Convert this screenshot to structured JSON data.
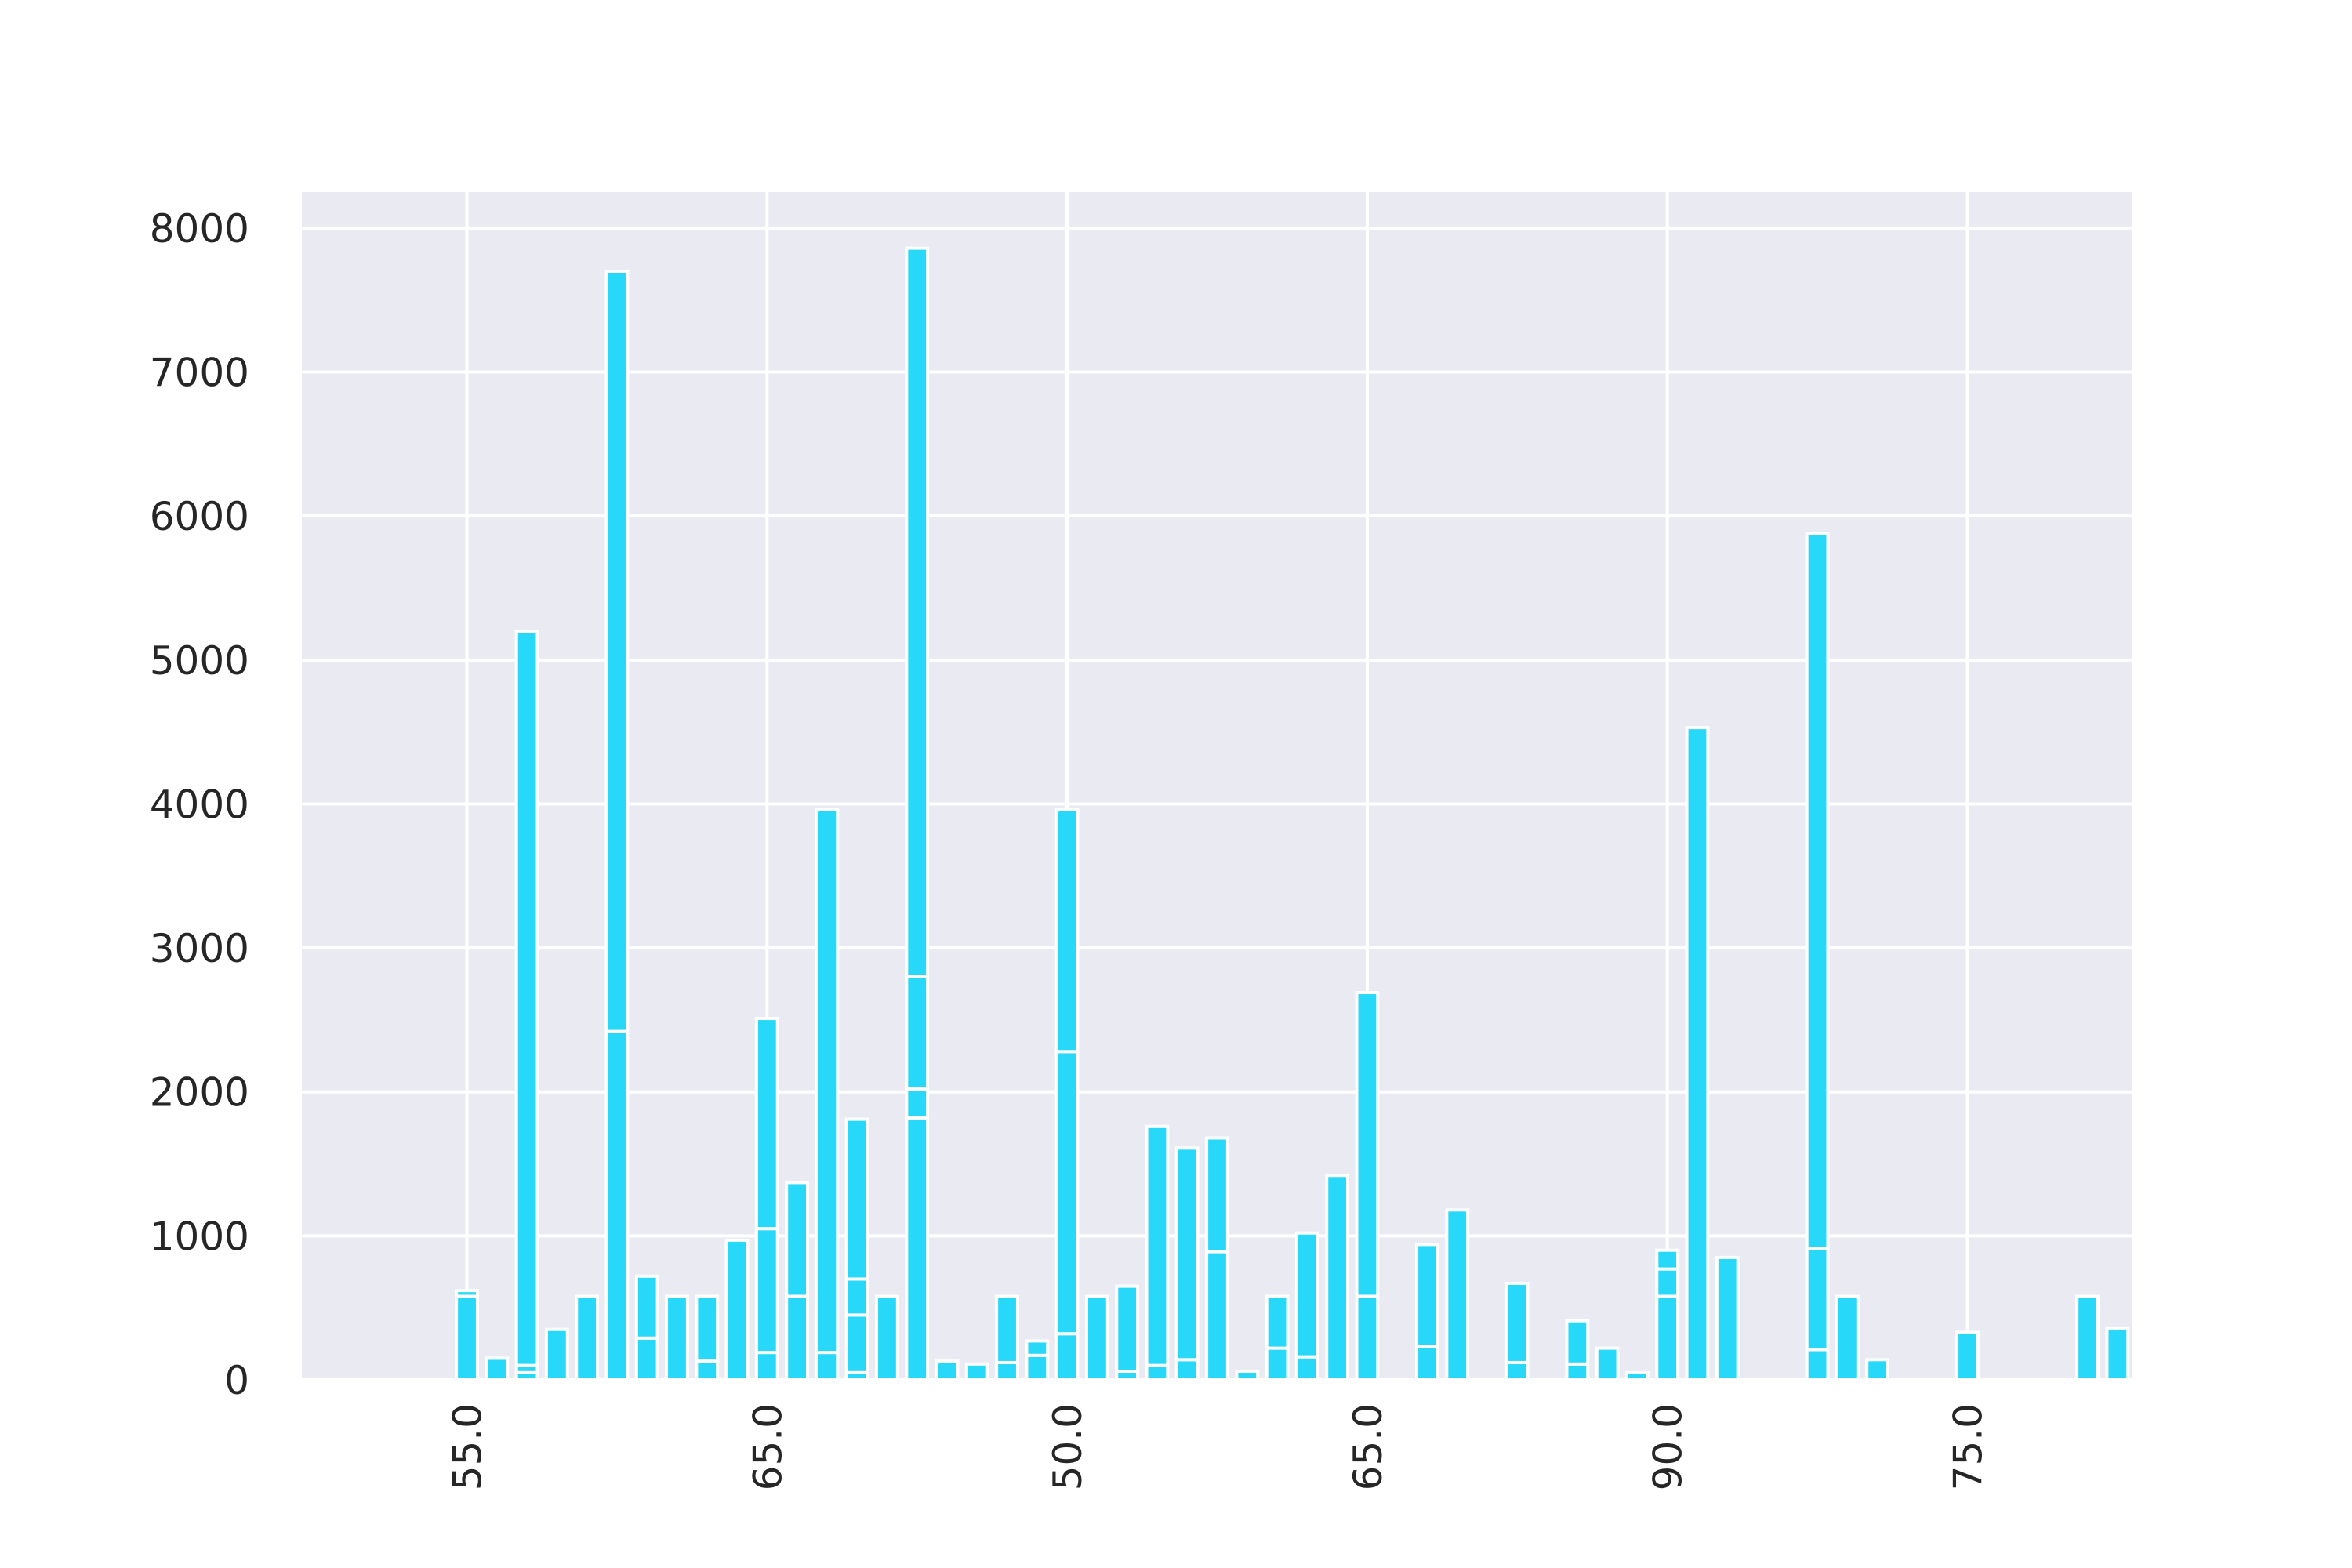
{
  "chart_data": {
    "type": "bar",
    "stacked": true,
    "grid": true,
    "colors": {
      "bar": "#28d8f8",
      "bar_edge": "#ffffff",
      "background": "#eaeaf2",
      "grid": "#ffffff",
      "text": "#262626"
    },
    "xlim": [
      -10.5,
      50.5
    ],
    "ylim": [
      0,
      8250
    ],
    "x_ticks": [
      {
        "x": -5,
        "label": "55.0"
      },
      {
        "x": 5,
        "label": "65.0"
      },
      {
        "x": 15,
        "label": "50.0"
      },
      {
        "x": 25,
        "label": "65.0"
      },
      {
        "x": 35,
        "label": "90.0"
      },
      {
        "x": 45,
        "label": "75.0"
      }
    ],
    "y_ticks": [
      0,
      1000,
      2000,
      3000,
      4000,
      5000,
      6000,
      7000,
      8000
    ],
    "bar_width": 0.7,
    "bars": [
      {
        "x": -5,
        "stack": [
          580,
          40
        ]
      },
      {
        "x": -4,
        "stack": [
          150
        ]
      },
      {
        "x": -3,
        "stack": [
          50,
          50,
          5100
        ]
      },
      {
        "x": -2,
        "stack": [
          350
        ]
      },
      {
        "x": -1,
        "stack": [
          580
        ]
      },
      {
        "x": 0,
        "stack": [
          2420,
          5280
        ]
      },
      {
        "x": 1,
        "stack": [
          290,
          430
        ]
      },
      {
        "x": 2,
        "stack": [
          580
        ]
      },
      {
        "x": 3,
        "stack": [
          130,
          450
        ]
      },
      {
        "x": 4,
        "stack": [
          970
        ]
      },
      {
        "x": 5,
        "stack": [
          190,
          860,
          1460
        ]
      },
      {
        "x": 6,
        "stack": [
          580,
          790
        ]
      },
      {
        "x": 7,
        "stack": [
          190,
          3770
        ]
      },
      {
        "x": 8,
        "stack": [
          50,
          400,
          250,
          1110
        ]
      },
      {
        "x": 9,
        "stack": [
          580
        ]
      },
      {
        "x": 10,
        "stack": [
          1820,
          200,
          780,
          5060
        ]
      },
      {
        "x": 11,
        "stack": [
          130
        ]
      },
      {
        "x": 12,
        "stack": [
          110
        ]
      },
      {
        "x": 13,
        "stack": [
          120,
          460
        ]
      },
      {
        "x": 14,
        "stack": [
          170,
          100
        ]
      },
      {
        "x": 15,
        "stack": [
          320,
          1960,
          1680
        ]
      },
      {
        "x": 16,
        "stack": [
          580
        ]
      },
      {
        "x": 17,
        "stack": [
          60,
          590
        ]
      },
      {
        "x": 18,
        "stack": [
          100,
          1660
        ]
      },
      {
        "x": 19,
        "stack": [
          140,
          1470
        ]
      },
      {
        "x": 20,
        "stack": [
          890,
          790
        ]
      },
      {
        "x": 21,
        "stack": [
          60
        ]
      },
      {
        "x": 22,
        "stack": [
          220,
          360
        ]
      },
      {
        "x": 23,
        "stack": [
          160,
          860
        ]
      },
      {
        "x": 24,
        "stack": [
          1420
        ]
      },
      {
        "x": 25,
        "stack": [
          580,
          2110
        ]
      },
      {
        "x": 26,
        "stack": [
          0
        ]
      },
      {
        "x": 27,
        "stack": [
          230,
          710
        ]
      },
      {
        "x": 28,
        "stack": [
          1180
        ]
      },
      {
        "x": 29,
        "stack": [
          0
        ]
      },
      {
        "x": 30,
        "stack": [
          120,
          550
        ]
      },
      {
        "x": 31,
        "stack": [
          0
        ]
      },
      {
        "x": 32,
        "stack": [
          110,
          300
        ]
      },
      {
        "x": 33,
        "stack": [
          220
        ]
      },
      {
        "x": 34,
        "stack": [
          50
        ]
      },
      {
        "x": 35,
        "stack": [
          580,
          190,
          130
        ]
      },
      {
        "x": 36,
        "stack": [
          4530
        ]
      },
      {
        "x": 37,
        "stack": [
          850
        ]
      },
      {
        "x": 38,
        "stack": [
          0
        ]
      },
      {
        "x": 39,
        "stack": [
          0
        ]
      },
      {
        "x": 40,
        "stack": [
          210,
          700,
          4970
        ]
      },
      {
        "x": 41,
        "stack": [
          580
        ]
      },
      {
        "x": 42,
        "stack": [
          140
        ]
      },
      {
        "x": 43,
        "stack": [
          0
        ]
      },
      {
        "x": 44,
        "stack": [
          0
        ]
      },
      {
        "x": 45,
        "stack": [
          330
        ]
      },
      {
        "x": 46,
        "stack": [
          0
        ]
      },
      {
        "x": 47,
        "stack": [
          0
        ]
      },
      {
        "x": 48,
        "stack": [
          0
        ]
      },
      {
        "x": 49,
        "stack": [
          580
        ]
      },
      {
        "x": 50,
        "stack": [
          360
        ]
      }
    ]
  }
}
